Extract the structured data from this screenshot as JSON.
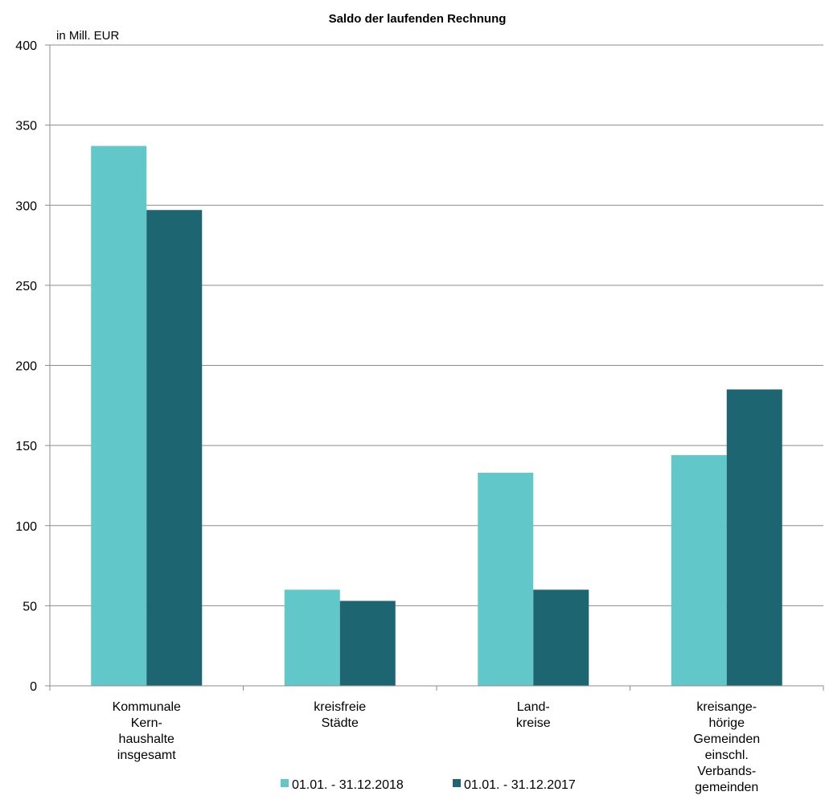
{
  "chart_data": {
    "type": "bar",
    "title": "Saldo der laufenden Rechnung",
    "ylabel": "in Mill. EUR",
    "xlabel": "",
    "ylim": [
      0,
      400
    ],
    "yticks": [
      0,
      50,
      100,
      150,
      200,
      250,
      300,
      350,
      400
    ],
    "grid": true,
    "legend_position": "bottom",
    "categories": [
      [
        "Kommunale",
        "Kern-",
        "haushalte",
        "insgesamt"
      ],
      [
        "kreisfreie",
        "Städte"
      ],
      [
        "Land-",
        "kreise"
      ],
      [
        "kreisange-",
        "hörige",
        "Gemeinden",
        "einschl.",
        "Verbands-",
        "gemeinden"
      ]
    ],
    "series": [
      {
        "name": "01.01. - 31.12.2018",
        "color": "#62c7c8",
        "values": [
          337,
          60,
          133,
          144
        ]
      },
      {
        "name": "01.01. - 31.12.2017",
        "color": "#1d6571",
        "values": [
          297,
          53,
          60,
          185
        ]
      }
    ]
  }
}
